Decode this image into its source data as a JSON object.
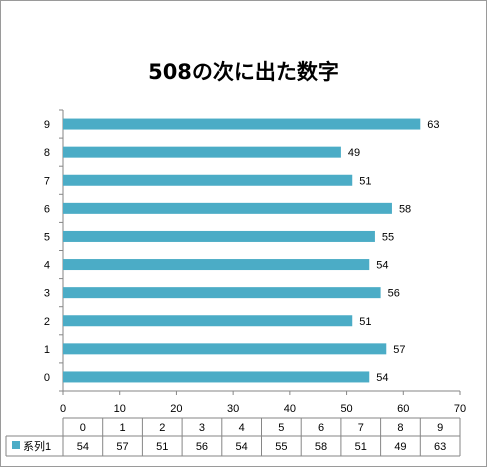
{
  "chart_data": {
    "type": "bar",
    "orientation": "horizontal",
    "title": "508の次に出た数字",
    "categories": [
      "0",
      "1",
      "2",
      "3",
      "4",
      "5",
      "6",
      "7",
      "8",
      "9"
    ],
    "series": [
      {
        "name": "系列1",
        "values": [
          54,
          57,
          51,
          56,
          54,
          55,
          58,
          51,
          49,
          63
        ],
        "color": "#4bacc6"
      }
    ],
    "xlim": [
      0,
      70
    ],
    "x_ticks": [
      "0",
      "10",
      "20",
      "30",
      "40",
      "50",
      "60",
      "70"
    ],
    "grid": false,
    "data_labels": true,
    "data_table": true,
    "legend_placement": "data-table"
  }
}
